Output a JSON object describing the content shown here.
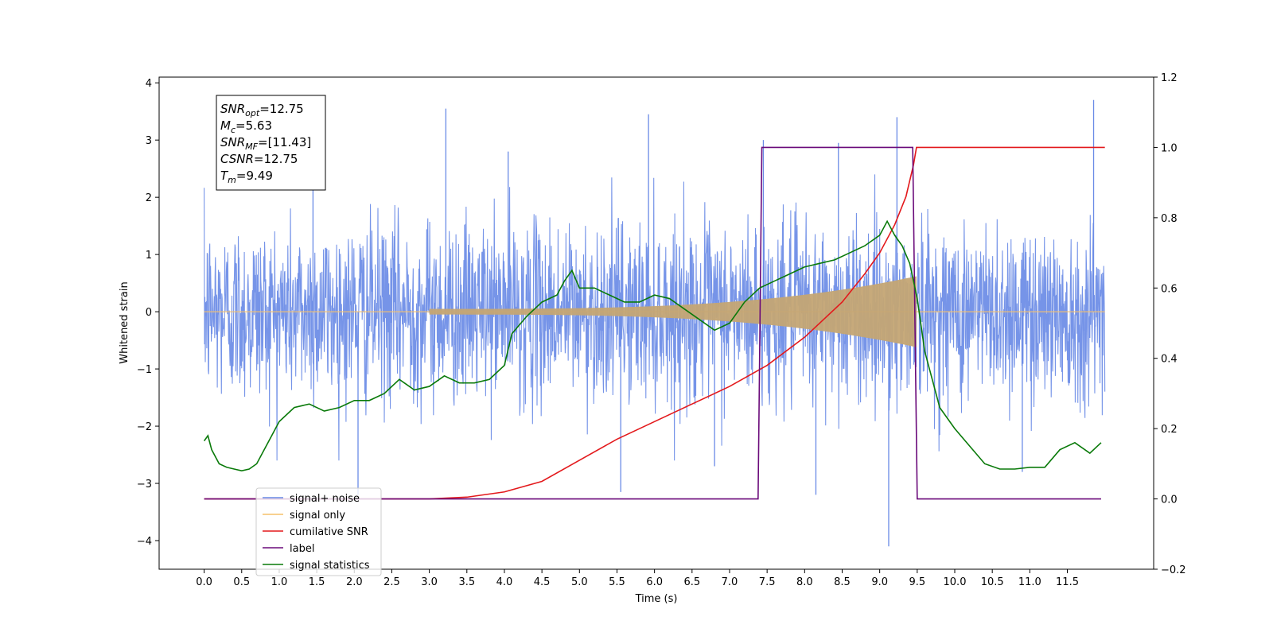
{
  "chart_data": {
    "type": "line",
    "xlabel": "Time (s)",
    "ylabel_left": "Whitened strain",
    "ylabel_right": "",
    "xlim": [
      -0.6,
      12.65
    ],
    "ylim_left": [
      -4.5,
      4.1
    ],
    "ylim_right": [
      -0.2,
      1.2
    ],
    "x_ticks": [
      "0.0",
      "0.5",
      "1.0",
      "1.5",
      "2.0",
      "2.5",
      "3.0",
      "3.5",
      "4.0",
      "4.5",
      "5.0",
      "5.5",
      "6.0",
      "6.5",
      "7.0",
      "7.5",
      "8.0",
      "8.5",
      "9.0",
      "9.5",
      "10.0",
      "10.5",
      "11.0",
      "11.5"
    ],
    "y_ticks_left": [
      "−4",
      "−3",
      "−2",
      "−1",
      "0",
      "1",
      "2",
      "3",
      "4"
    ],
    "y_ticks_right": [
      "−0.2",
      "0.0",
      "0.2",
      "0.4",
      "0.6",
      "0.8",
      "1.0",
      "1.2"
    ],
    "grid": false,
    "legend_position": "lower-left",
    "annotation": {
      "lines": [
        {
          "base": "SNR",
          "sub": "opt",
          "value": "=12.75"
        },
        {
          "base": "M",
          "sub": "c",
          "value": "=5.63"
        },
        {
          "base": "SNR",
          "sub": "MF",
          "value": "=[11.43]"
        },
        {
          "base": "CSNR",
          "sub": "",
          "value": "=12.75"
        },
        {
          "base": "T",
          "sub": "m",
          "value": "=9.49"
        }
      ]
    },
    "series": [
      {
        "name": "signal+ noise",
        "axis": "left",
        "color": "#6a8be6",
        "style": "noise",
        "x_range": [
          0.0,
          12.0
        ],
        "peaks": [
          {
            "x": 3.22,
            "y": 3.55
          },
          {
            "x": 5.92,
            "y": 3.45
          },
          {
            "x": 9.23,
            "y": 3.4
          },
          {
            "x": 11.85,
            "y": 3.7
          },
          {
            "x": 7.45,
            "y": 3.0
          },
          {
            "x": 9.12,
            "y": -4.1
          },
          {
            "x": 5.55,
            "y": -3.15
          },
          {
            "x": 2.05,
            "y": -3.2
          },
          {
            "x": 8.15,
            "y": -3.2
          },
          {
            "x": 8.45,
            "y": 2.95
          },
          {
            "x": 4.05,
            "y": 2.8
          },
          {
            "x": 1.45,
            "y": 2.5
          },
          {
            "x": 10.9,
            "y": -2.8
          },
          {
            "x": 6.8,
            "y": -2.7
          }
        ]
      },
      {
        "name": "signal only",
        "axis": "left",
        "color": "#f5c06a",
        "style": "chirp",
        "start": 3.0,
        "end": 9.49,
        "peak_amplitude": 0.62
      },
      {
        "name": "cumilative SNR",
        "axis": "right",
        "color": "#e3191c",
        "x": [
          0.0,
          3.0,
          3.5,
          4.0,
          4.5,
          5.0,
          5.5,
          6.0,
          6.5,
          7.0,
          7.5,
          8.0,
          8.5,
          8.8,
          9.0,
          9.2,
          9.35,
          9.45,
          9.49,
          12.0
        ],
        "y": [
          0.0,
          0.0,
          0.005,
          0.02,
          0.05,
          0.11,
          0.17,
          0.22,
          0.27,
          0.32,
          0.38,
          0.46,
          0.56,
          0.64,
          0.7,
          0.78,
          0.86,
          0.95,
          1.0,
          1.0
        ]
      },
      {
        "name": "label",
        "axis": "right",
        "color": "#6a0a7a",
        "x": [
          0.0,
          7.38,
          7.43,
          9.44,
          9.5,
          11.95
        ],
        "y": [
          0.0,
          0.0,
          1.0,
          1.0,
          0.0,
          0.0
        ]
      },
      {
        "name": "signal statistics",
        "axis": "right",
        "color": "#0a7a0a",
        "x": [
          0.0,
          0.05,
          0.1,
          0.2,
          0.3,
          0.4,
          0.5,
          0.6,
          0.7,
          0.8,
          0.9,
          1.0,
          1.2,
          1.4,
          1.6,
          1.8,
          2.0,
          2.2,
          2.4,
          2.6,
          2.8,
          3.0,
          3.2,
          3.4,
          3.6,
          3.8,
          4.0,
          4.1,
          4.3,
          4.5,
          4.7,
          4.8,
          4.9,
          5.0,
          5.2,
          5.4,
          5.6,
          5.8,
          6.0,
          6.2,
          6.4,
          6.6,
          6.8,
          7.0,
          7.2,
          7.4,
          7.6,
          7.8,
          8.0,
          8.2,
          8.4,
          8.6,
          8.8,
          9.0,
          9.1,
          9.2,
          9.3,
          9.4,
          9.5,
          9.6,
          9.8,
          10.0,
          10.2,
          10.4,
          10.6,
          10.8,
          11.0,
          11.2,
          11.4,
          11.6,
          11.8,
          11.95
        ],
        "y": [
          0.165,
          0.18,
          0.14,
          0.1,
          0.09,
          0.085,
          0.08,
          0.085,
          0.1,
          0.14,
          0.18,
          0.22,
          0.26,
          0.27,
          0.25,
          0.26,
          0.28,
          0.28,
          0.3,
          0.34,
          0.31,
          0.32,
          0.35,
          0.33,
          0.33,
          0.34,
          0.38,
          0.47,
          0.52,
          0.56,
          0.58,
          0.62,
          0.65,
          0.6,
          0.6,
          0.58,
          0.56,
          0.56,
          0.58,
          0.57,
          0.54,
          0.51,
          0.48,
          0.5,
          0.56,
          0.6,
          0.62,
          0.64,
          0.66,
          0.67,
          0.68,
          0.7,
          0.72,
          0.75,
          0.79,
          0.75,
          0.72,
          0.67,
          0.57,
          0.42,
          0.26,
          0.2,
          0.15,
          0.1,
          0.085,
          0.085,
          0.09,
          0.09,
          0.14,
          0.16,
          0.13,
          0.16
        ]
      }
    ]
  }
}
